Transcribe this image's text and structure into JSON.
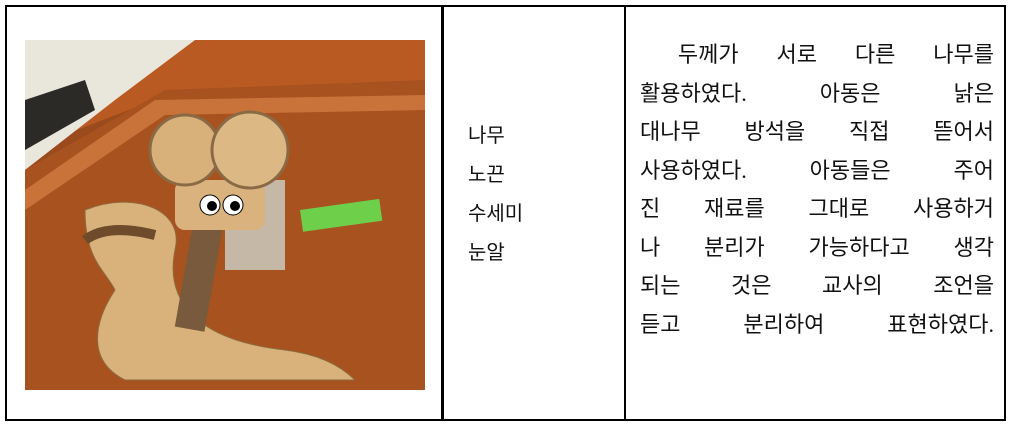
{
  "materials": [
    "나무",
    "노끈",
    "수세미",
    "눈알"
  ],
  "description": [
    " 두께가 서로 다른 나무를",
    "활용하였다. 아동은 낡은",
    "대나무 방석을 직접 뜯어서",
    "사용하였다. 아동들은 주어",
    "진 재료를 그대로 사용하거",
    "나 분리가 가능하다고 생각",
    "되는 것은 교사의 조언을",
    "듣고 분리하여 표현하였다."
  ]
}
